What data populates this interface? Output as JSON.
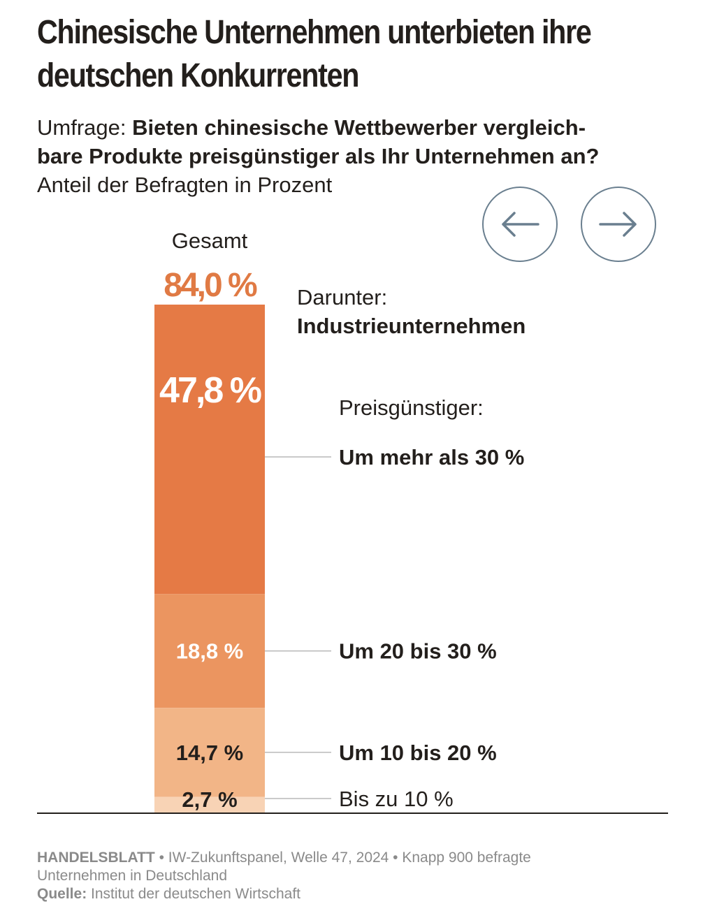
{
  "title_line1": "Chinesische Unternehmen unterbieten ihre",
  "title_line2": "deutschen Konkurrenten",
  "subtitle_lead": "Umfrage: ",
  "subtitle_question_line1": "Bieten chinesische Wettbewerber vergleich-",
  "subtitle_question_line2": "bare Produkte preisgünstiger als Ihr Unternehmen an?",
  "unit_line": "Anteil der Befragten in Prozent",
  "nav": {
    "prev_icon": "arrow-left-icon",
    "next_icon": "arrow-right-icon",
    "icon_color": "#6a7f8f"
  },
  "total_label": "Gesamt",
  "total_value": "84,0 %",
  "darunter_label": "Darunter:",
  "darunter_bold": "Industrieunternehmen",
  "legend_heading": "Preisgünstiger:",
  "footer": {
    "brand": "HANDELSBLATT",
    "text": " • IW-Zukunftspanel, Welle 47, 2024 • Knapp 900 befragte",
    "text2": "Unternehmen in Deutschland",
    "source_label": "Quelle:",
    "source_text": " Institut der deutschen Wirtschaft"
  },
  "chart_data": {
    "type": "bar",
    "stacked": true,
    "total": 84.0,
    "categories": [
      "Um mehr als 30 %",
      "Um 20 bis 30 %",
      "Um 10 bis 20 %",
      "Bis zu 10 %"
    ],
    "values": [
      47.8,
      18.8,
      14.7,
      2.7
    ],
    "value_labels": [
      "47,8 %",
      "18,8 %",
      "14,7 %",
      "2,7 %"
    ],
    "colors": [
      "#e57a45",
      "#eb9560",
      "#f2b587",
      "#f8d3b5"
    ],
    "label_colors": [
      "#ffffff",
      "#ffffff",
      "#231f1c",
      "#231f1c"
    ],
    "bold_categories": [
      true,
      true,
      true,
      false
    ]
  }
}
